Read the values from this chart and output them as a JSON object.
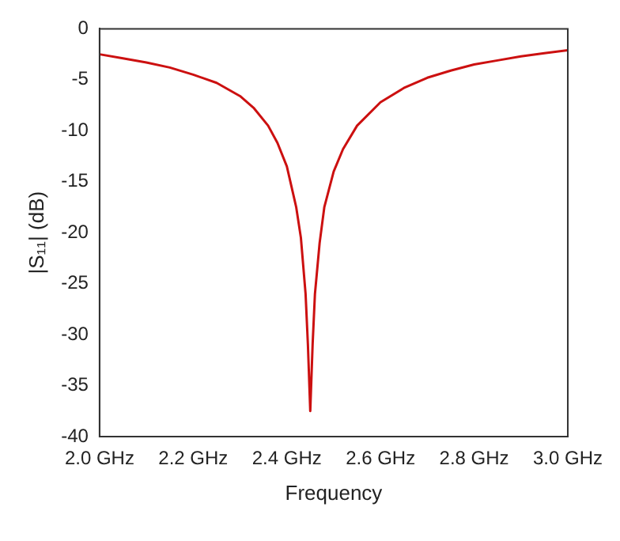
{
  "chart_data": {
    "type": "line",
    "xlabel": "Frequency",
    "ylabel": "|S₁₁| (dB)",
    "xlim": [
      2.0,
      3.0
    ],
    "ylim": [
      -40,
      0
    ],
    "xticks": [
      {
        "value": 2.0,
        "label": "2.0 GHz"
      },
      {
        "value": 2.2,
        "label": "2.2 GHz"
      },
      {
        "value": 2.4,
        "label": "2.4 GHz"
      },
      {
        "value": 2.6,
        "label": "2.6 GHz"
      },
      {
        "value": 2.8,
        "label": "2.8 GHz"
      },
      {
        "value": 3.0,
        "label": "3.0 GHz"
      }
    ],
    "yticks": [
      0,
      -5,
      -10,
      -15,
      -20,
      -25,
      -30,
      -35,
      -40
    ],
    "grid": false,
    "legend": false,
    "marker": "none",
    "line_style": "solid",
    "series": [
      {
        "color": "#cc1010",
        "x": [
          2.0,
          2.05,
          2.1,
          2.15,
          2.2,
          2.25,
          2.3,
          2.33,
          2.36,
          2.38,
          2.4,
          2.42,
          2.43,
          2.44,
          2.445,
          2.45,
          2.455,
          2.46,
          2.47,
          2.48,
          2.5,
          2.52,
          2.55,
          2.6,
          2.65,
          2.7,
          2.75,
          2.8,
          2.85,
          2.9,
          2.95,
          3.0
        ],
        "values": [
          -2.5,
          -2.9,
          -3.3,
          -3.8,
          -4.5,
          -5.3,
          -6.6,
          -7.8,
          -9.5,
          -11.2,
          -13.5,
          -17.5,
          -20.5,
          -26,
          -31,
          -37.5,
          -31,
          -26,
          -21,
          -17.5,
          -14,
          -11.8,
          -9.5,
          -7.2,
          -5.8,
          -4.8,
          -4.1,
          -3.5,
          -3.1,
          -2.7,
          -2.4,
          -2.1
        ]
      }
    ]
  }
}
